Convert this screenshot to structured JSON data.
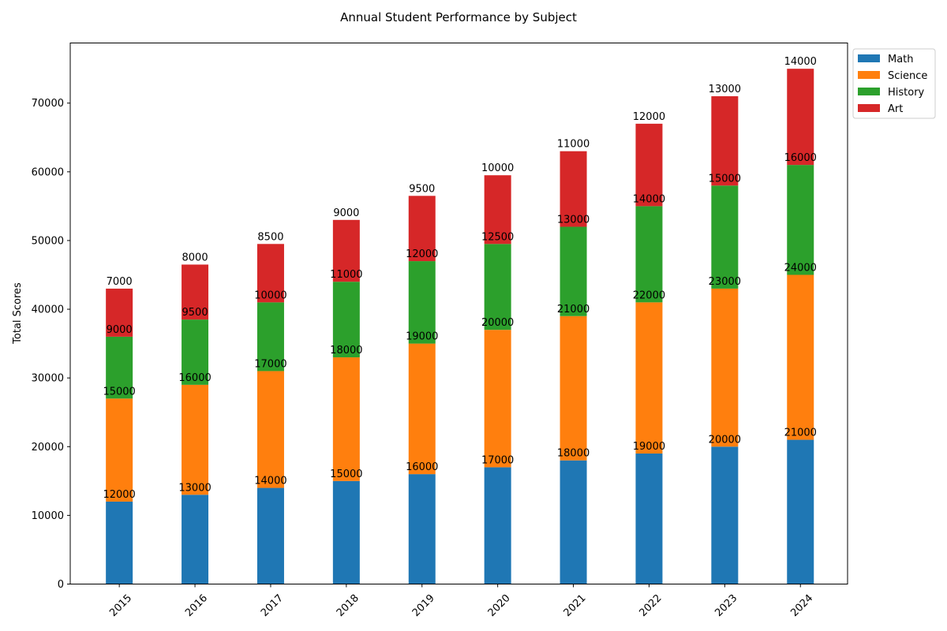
{
  "chart_data": {
    "type": "bar",
    "stacked": true,
    "title": "Annual Student Performance by Subject",
    "xlabel": "",
    "ylabel": "Total Scores",
    "categories": [
      "2015",
      "2016",
      "2017",
      "2018",
      "2019",
      "2020",
      "2021",
      "2022",
      "2023",
      "2024"
    ],
    "series": [
      {
        "name": "Math",
        "color": "#1f77b4",
        "values": [
          12000,
          13000,
          14000,
          15000,
          16000,
          17000,
          18000,
          19000,
          20000,
          21000
        ]
      },
      {
        "name": "Science",
        "color": "#ff7f0e",
        "values": [
          15000,
          16000,
          17000,
          18000,
          19000,
          20000,
          21000,
          22000,
          23000,
          24000
        ]
      },
      {
        "name": "History",
        "color": "#2ca02c",
        "values": [
          9000,
          9500,
          10000,
          11000,
          12000,
          12500,
          13000,
          14000,
          15000,
          16000
        ]
      },
      {
        "name": "Art",
        "color": "#d62728",
        "values": [
          7000,
          8000,
          8500,
          9000,
          9500,
          10000,
          11000,
          12000,
          13000,
          14000
        ]
      }
    ],
    "ylim": [
      0,
      78750
    ],
    "yticks": [
      0,
      10000,
      20000,
      30000,
      40000,
      50000,
      60000,
      70000
    ],
    "grid": false,
    "legend_position": "outside upper right",
    "xtick_rotation": 45
  }
}
